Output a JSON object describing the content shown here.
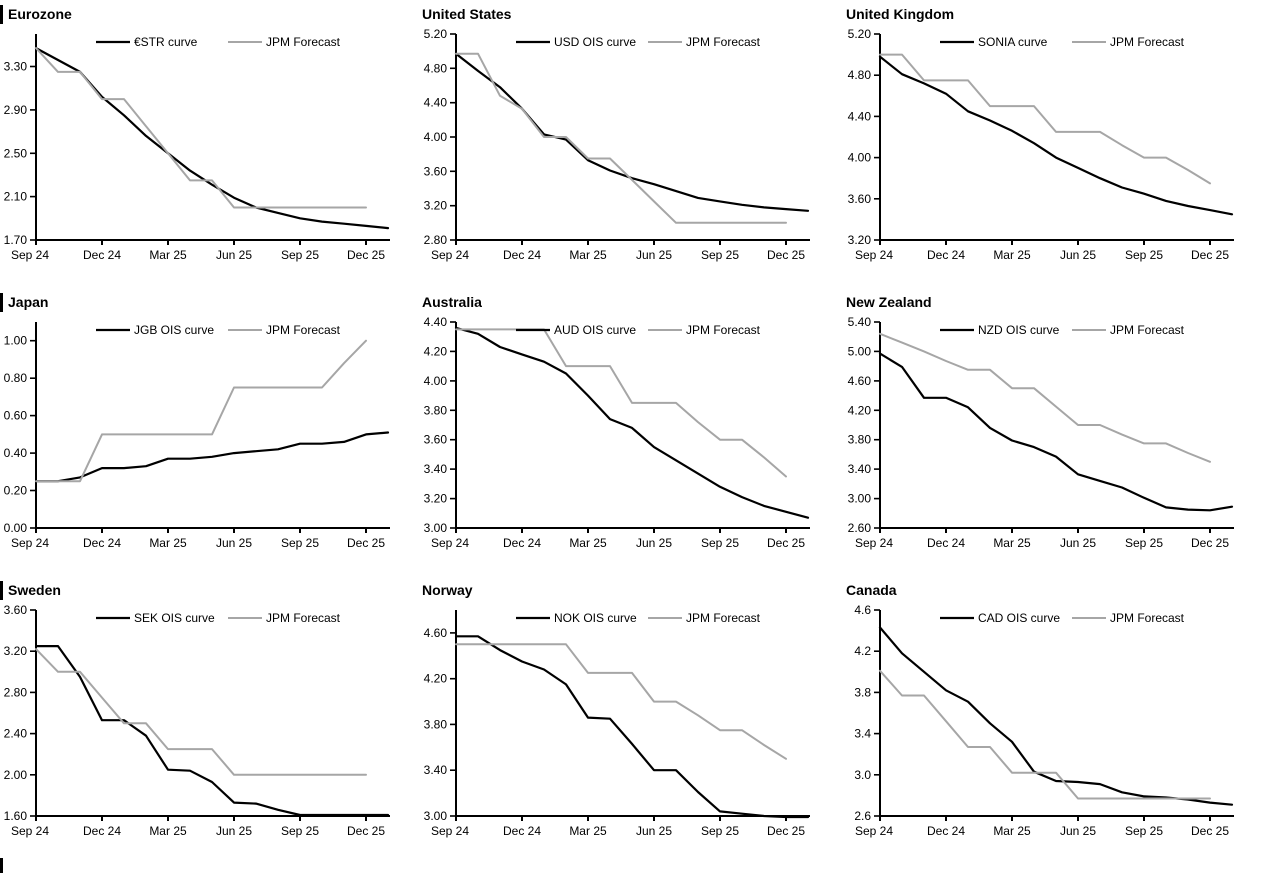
{
  "colors": {
    "curve": "#000000",
    "forecast": "#a6a6a6",
    "axis": "#000000"
  },
  "x_axis": {
    "months": [
      "Sep 24",
      "Oct 24",
      "Nov 24",
      "Dec 24",
      "Jan 25",
      "Feb 25",
      "Mar 25",
      "Apr 25",
      "May 25",
      "Jun 25",
      "Jul 25",
      "Aug 25",
      "Sep 25",
      "Oct 25",
      "Nov 25",
      "Dec 25",
      "Jan 26"
    ],
    "tick_indices": [
      0,
      3,
      6,
      9,
      12,
      15
    ],
    "tick_labels": [
      "Sep 24",
      "Dec 24",
      "Mar 25",
      "Jun 25",
      "Sep 25",
      "Dec 25"
    ]
  },
  "chart_data": [
    {
      "type": "line",
      "title": "Eurozone",
      "left_bar": true,
      "ylim": [
        1.7,
        3.6
      ],
      "yticks": [
        1.7,
        2.1,
        2.5,
        2.9,
        3.3
      ],
      "y_decimals": 2,
      "grid": false,
      "legend_position": "top-center",
      "series": [
        {
          "name": "€STR curve",
          "color_key": "curve",
          "values": [
            3.47,
            3.36,
            3.25,
            3.02,
            2.85,
            2.66,
            2.5,
            2.34,
            2.21,
            2.09,
            2.0,
            1.95,
            1.9,
            1.87,
            1.85,
            1.83,
            1.81
          ]
        },
        {
          "name": "JPM Forecast",
          "color_key": "forecast",
          "values": [
            3.47,
            3.25,
            3.25,
            3.0,
            3.0,
            2.75,
            2.5,
            2.25,
            2.25,
            2.0,
            2.0,
            2.0,
            2.0,
            2.0,
            2.0,
            2.0
          ]
        }
      ]
    },
    {
      "type": "line",
      "title": "United States",
      "left_bar": false,
      "ylim": [
        2.8,
        5.2
      ],
      "yticks": [
        2.8,
        3.2,
        3.6,
        4.0,
        4.4,
        4.8,
        5.2
      ],
      "y_decimals": 2,
      "grid": false,
      "legend_position": "top-center",
      "series": [
        {
          "name": "USD OIS curve",
          "color_key": "curve",
          "values": [
            4.97,
            4.77,
            4.58,
            4.33,
            4.03,
            3.97,
            3.73,
            3.61,
            3.52,
            3.45,
            3.37,
            3.29,
            3.25,
            3.21,
            3.18,
            3.16,
            3.14
          ]
        },
        {
          "name": "JPM Forecast",
          "color_key": "forecast",
          "values": [
            4.97,
            4.97,
            4.48,
            4.33,
            4.0,
            4.0,
            3.75,
            3.75,
            3.5,
            3.25,
            3.0,
            3.0,
            3.0,
            3.0,
            3.0,
            3.0
          ]
        }
      ]
    },
    {
      "type": "line",
      "title": "United Kingdom",
      "left_bar": false,
      "ylim": [
        3.2,
        5.2
      ],
      "yticks": [
        3.2,
        3.6,
        4.0,
        4.4,
        4.8,
        5.2
      ],
      "y_decimals": 2,
      "grid": false,
      "legend_position": "top-center",
      "series": [
        {
          "name": "SONIA curve",
          "color_key": "curve",
          "values": [
            4.98,
            4.81,
            4.72,
            4.62,
            4.45,
            4.36,
            4.26,
            4.14,
            4.0,
            3.9,
            3.8,
            3.71,
            3.65,
            3.58,
            3.53,
            3.49,
            3.45
          ]
        },
        {
          "name": "JPM Forecast",
          "color_key": "forecast",
          "values": [
            5.0,
            5.0,
            4.75,
            4.75,
            4.75,
            4.5,
            4.5,
            4.5,
            4.25,
            4.25,
            4.25,
            4.12,
            4.0,
            4.0,
            3.88,
            3.75
          ]
        }
      ]
    },
    {
      "type": "line",
      "title": "Japan",
      "left_bar": true,
      "ylim": [
        0.0,
        1.1
      ],
      "yticks": [
        0.0,
        0.2,
        0.4,
        0.6,
        0.8,
        1.0
      ],
      "y_decimals": 2,
      "grid": false,
      "legend_position": "top-center",
      "series": [
        {
          "name": "JGB OIS curve",
          "color_key": "curve",
          "values": [
            0.25,
            0.25,
            0.27,
            0.32,
            0.32,
            0.33,
            0.37,
            0.37,
            0.38,
            0.4,
            0.41,
            0.42,
            0.45,
            0.45,
            0.46,
            0.5,
            0.51
          ]
        },
        {
          "name": "JPM Forecast",
          "color_key": "forecast",
          "values": [
            0.25,
            0.25,
            0.25,
            0.5,
            0.5,
            0.5,
            0.5,
            0.5,
            0.5,
            0.75,
            0.75,
            0.75,
            0.75,
            0.75,
            0.88,
            1.0
          ]
        }
      ]
    },
    {
      "type": "line",
      "title": "Australia",
      "left_bar": false,
      "ylim": [
        3.0,
        4.4
      ],
      "yticks": [
        3.0,
        3.2,
        3.4,
        3.6,
        3.8,
        4.0,
        4.2,
        4.4
      ],
      "y_decimals": 2,
      "grid": false,
      "legend_position": "top-center",
      "series": [
        {
          "name": "AUD OIS curve",
          "color_key": "curve",
          "values": [
            4.36,
            4.32,
            4.23,
            4.18,
            4.13,
            4.05,
            3.9,
            3.74,
            3.68,
            3.55,
            3.46,
            3.37,
            3.28,
            3.21,
            3.15,
            3.11,
            3.07
          ]
        },
        {
          "name": "JPM Forecast",
          "color_key": "forecast",
          "values": [
            4.35,
            4.35,
            4.35,
            4.35,
            4.35,
            4.1,
            4.1,
            4.1,
            3.85,
            3.85,
            3.85,
            3.72,
            3.6,
            3.6,
            3.48,
            3.35
          ]
        }
      ]
    },
    {
      "type": "line",
      "title": "New Zealand",
      "left_bar": false,
      "ylim": [
        2.6,
        5.4
      ],
      "yticks": [
        2.6,
        3.0,
        3.4,
        3.8,
        4.2,
        4.6,
        5.0,
        5.4
      ],
      "y_decimals": 2,
      "grid": false,
      "legend_position": "top-center",
      "series": [
        {
          "name": "NZD OIS curve",
          "color_key": "curve",
          "values": [
            4.97,
            4.79,
            4.37,
            4.37,
            4.24,
            3.96,
            3.79,
            3.7,
            3.57,
            3.33,
            3.24,
            3.15,
            3.01,
            2.88,
            2.85,
            2.84,
            2.89
          ]
        },
        {
          "name": "JPM Forecast",
          "color_key": "forecast",
          "values": [
            5.24,
            5.12,
            5.0,
            4.87,
            4.75,
            4.75,
            4.5,
            4.5,
            4.25,
            4.0,
            4.0,
            3.87,
            3.75,
            3.75,
            3.62,
            3.5
          ]
        }
      ]
    },
    {
      "type": "line",
      "title": "Sweden",
      "left_bar": true,
      "ylim": [
        1.6,
        3.6
      ],
      "yticks": [
        1.6,
        2.0,
        2.4,
        2.8,
        3.2,
        3.6
      ],
      "y_decimals": 2,
      "grid": false,
      "legend_position": "top-center",
      "series": [
        {
          "name": "SEK OIS curve",
          "color_key": "curve",
          "values": [
            3.25,
            3.25,
            2.95,
            2.53,
            2.53,
            2.38,
            2.05,
            2.04,
            1.93,
            1.73,
            1.72,
            1.66,
            1.61,
            1.61,
            1.61,
            1.61,
            1.61
          ]
        },
        {
          "name": "JPM Forecast",
          "color_key": "forecast",
          "values": [
            3.22,
            3.0,
            3.0,
            2.75,
            2.5,
            2.5,
            2.25,
            2.25,
            2.25,
            2.0,
            2.0,
            2.0,
            2.0,
            2.0,
            2.0,
            2.0
          ]
        }
      ]
    },
    {
      "type": "line",
      "title": "Norway",
      "left_bar": false,
      "ylim": [
        3.0,
        4.8
      ],
      "yticks": [
        3.0,
        3.4,
        3.8,
        4.2,
        4.6
      ],
      "y_decimals": 2,
      "grid": false,
      "legend_position": "top-center",
      "series": [
        {
          "name": "NOK OIS curve",
          "color_key": "curve",
          "values": [
            4.57,
            4.57,
            4.45,
            4.35,
            4.28,
            4.15,
            3.86,
            3.85,
            3.63,
            3.4,
            3.4,
            3.21,
            3.04,
            3.02,
            3.0,
            2.99,
            2.98
          ]
        },
        {
          "name": "JPM Forecast",
          "color_key": "forecast",
          "values": [
            4.5,
            4.5,
            4.5,
            4.5,
            4.5,
            4.5,
            4.25,
            4.25,
            4.25,
            4.0,
            4.0,
            3.88,
            3.75,
            3.75,
            3.62,
            3.5
          ]
        }
      ]
    },
    {
      "type": "line",
      "title": "Canada",
      "left_bar": false,
      "ylim": [
        2.6,
        4.6
      ],
      "yticks": [
        2.6,
        3.0,
        3.4,
        3.8,
        4.2,
        4.6
      ],
      "y_decimals": 1,
      "grid": false,
      "legend_position": "top-center",
      "series": [
        {
          "name": "CAD OIS curve",
          "color_key": "curve",
          "values": [
            4.43,
            4.18,
            4.0,
            3.82,
            3.71,
            3.5,
            3.32,
            3.03,
            2.94,
            2.93,
            2.91,
            2.83,
            2.79,
            2.78,
            2.76,
            2.73,
            2.71
          ]
        },
        {
          "name": "JPM Forecast",
          "color_key": "forecast",
          "values": [
            4.01,
            3.77,
            3.77,
            3.52,
            3.27,
            3.27,
            3.02,
            3.02,
            3.02,
            2.77,
            2.77,
            2.77,
            2.77,
            2.77,
            2.77,
            2.77
          ]
        }
      ]
    }
  ]
}
